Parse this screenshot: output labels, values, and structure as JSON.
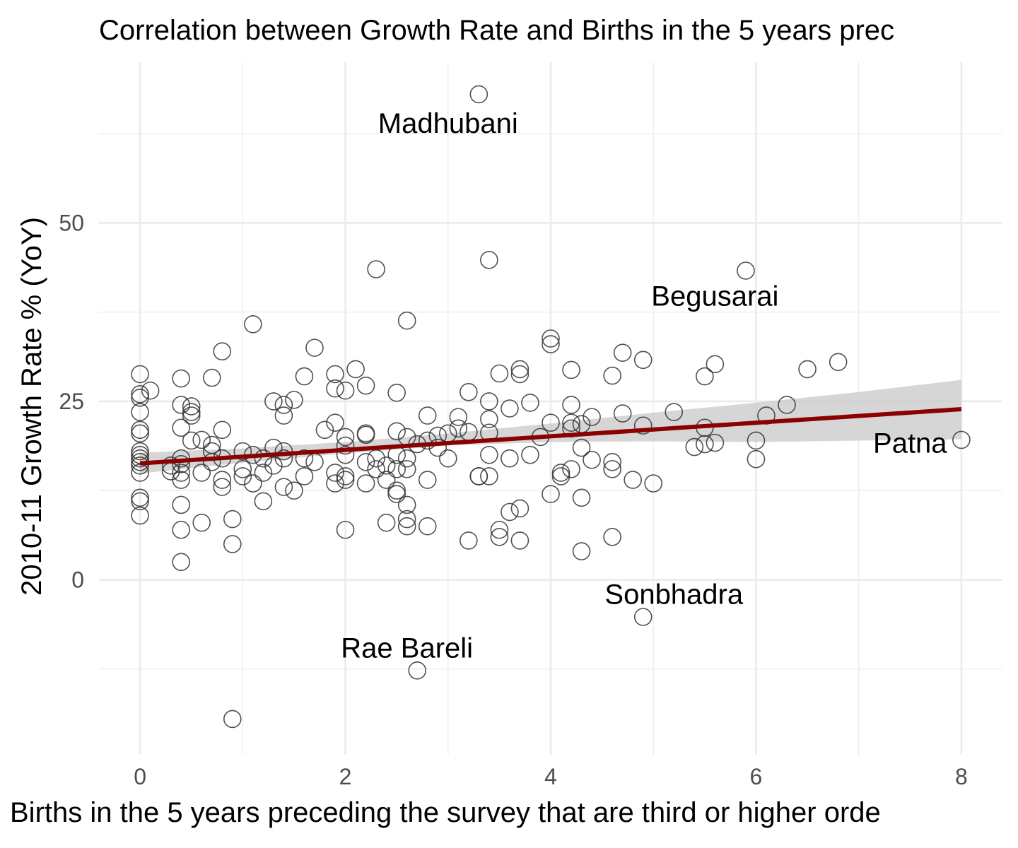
{
  "chart_data": {
    "type": "scatter",
    "title": "Correlation between Growth Rate and Births in the 5 years prec",
    "xlabel": "Births in the 5 years preceding the survey that are third or higher orde",
    "ylabel": "2010-11 Growth Rate % (YoY)",
    "xlim": [
      -0.4,
      8.4
    ],
    "ylim": [
      -24.5,
      72.5
    ],
    "x_ticks": [
      0,
      2,
      4,
      6,
      8
    ],
    "y_ticks": [
      0,
      25,
      50
    ],
    "x_tick_labels": [
      "0",
      "2",
      "4",
      "6",
      "8"
    ],
    "y_tick_labels": [
      "0",
      "25",
      "50"
    ],
    "grid": true,
    "colors": {
      "points": "#333333",
      "trend": "#8b0000",
      "band": "#c8c8c8",
      "grid": "#ebebeb"
    },
    "trend": {
      "x": [
        0,
        8
      ],
      "y": [
        16.3,
        23.9
      ]
    },
    "confidence_band": {
      "x": [
        0,
        1,
        2,
        3,
        4,
        5,
        6,
        7,
        8
      ],
      "lower": [
        14.9,
        16.4,
        17.7,
        18.8,
        19.3,
        19.4,
        19.3,
        19.5,
        19.7
      ],
      "upper": [
        17.8,
        18.4,
        19.3,
        20.5,
        21.9,
        23.4,
        24.8,
        26.3,
        28.0
      ]
    },
    "annotations": [
      {
        "label": "Madhubani",
        "x": 3.0,
        "y": 64
      },
      {
        "label": "Begusarai",
        "x": 5.6,
        "y": 39.8
      },
      {
        "label": "Patna",
        "x": 7.5,
        "y": 19.2
      },
      {
        "label": "Sonbhadra",
        "x": 5.2,
        "y": -2
      },
      {
        "label": "Rae Bareli",
        "x": 2.6,
        "y": -9.5
      }
    ],
    "points": [
      [
        3.3,
        68
      ],
      [
        2.3,
        43.5
      ],
      [
        3.4,
        44.8
      ],
      [
        5.9,
        43.3
      ],
      [
        1.1,
        35.8
      ],
      [
        2.6,
        36.3
      ],
      [
        4.0,
        33.8
      ],
      [
        4.0,
        33.0
      ],
      [
        0.8,
        32.0
      ],
      [
        1.7,
        32.5
      ],
      [
        4.7,
        31.8
      ],
      [
        4.9,
        30.8
      ],
      [
        5.6,
        30.2
      ],
      [
        6.8,
        30.5
      ],
      [
        6.5,
        29.5
      ],
      [
        0.0,
        28.8
      ],
      [
        0.4,
        28.2
      ],
      [
        0.7,
        28.3
      ],
      [
        1.6,
        28.5
      ],
      [
        1.9,
        28.8
      ],
      [
        2.1,
        29.5
      ],
      [
        3.5,
        28.9
      ],
      [
        3.7,
        28.8
      ],
      [
        3.7,
        29.5
      ],
      [
        4.2,
        29.4
      ],
      [
        4.6,
        28.6
      ],
      [
        5.5,
        28.5
      ],
      [
        0.0,
        26.0
      ],
      [
        0.1,
        26.5
      ],
      [
        0.0,
        25.5
      ],
      [
        1.9,
        26.8
      ],
      [
        2.0,
        26.5
      ],
      [
        2.2,
        27.2
      ],
      [
        2.5,
        26.2
      ],
      [
        3.2,
        26.3
      ],
      [
        0.4,
        24.5
      ],
      [
        0.5,
        24.3
      ],
      [
        0.5,
        23.5
      ],
      [
        0.5,
        23.0
      ],
      [
        1.3,
        25.0
      ],
      [
        1.4,
        24.5
      ],
      [
        1.4,
        23.0
      ],
      [
        1.5,
        25.2
      ],
      [
        2.8,
        23.0
      ],
      [
        3.4,
        25.0
      ],
      [
        3.6,
        24.0
      ],
      [
        3.8,
        24.8
      ],
      [
        4.2,
        24.5
      ],
      [
        4.7,
        23.3
      ],
      [
        5.2,
        23.5
      ],
      [
        6.1,
        23.0
      ],
      [
        6.3,
        24.5
      ],
      [
        0.0,
        23.5
      ],
      [
        0.0,
        21.0
      ],
      [
        0.0,
        20.5
      ],
      [
        0.4,
        21.3
      ],
      [
        0.5,
        19.5
      ],
      [
        0.6,
        19.6
      ],
      [
        0.7,
        18.9
      ],
      [
        0.7,
        18.0
      ],
      [
        0.8,
        21.0
      ],
      [
        1.8,
        21.0
      ],
      [
        1.9,
        22.0
      ],
      [
        2.0,
        20.0
      ],
      [
        2.0,
        18.8
      ],
      [
        2.2,
        20.5
      ],
      [
        2.2,
        20.3
      ],
      [
        2.5,
        20.8
      ],
      [
        2.6,
        20.0
      ],
      [
        2.9,
        20.2
      ],
      [
        3.0,
        20.5
      ],
      [
        3.1,
        22.8
      ],
      [
        3.1,
        21.2
      ],
      [
        3.2,
        20.7
      ],
      [
        3.4,
        22.5
      ],
      [
        3.4,
        20.6
      ],
      [
        4.0,
        22.0
      ],
      [
        4.2,
        22.0
      ],
      [
        4.2,
        21.2
      ],
      [
        4.3,
        21.8
      ],
      [
        4.4,
        22.8
      ],
      [
        4.9,
        21.6
      ],
      [
        5.5,
        21.3
      ],
      [
        5.4,
        18.6
      ],
      [
        5.5,
        19.0
      ],
      [
        5.6,
        19.2
      ],
      [
        6.0,
        19.5
      ],
      [
        6.0,
        16.9
      ],
      [
        8.0,
        19.6
      ],
      [
        0.0,
        18.0
      ],
      [
        0.0,
        17.5
      ],
      [
        0.0,
        17.0
      ],
      [
        0.0,
        16.5
      ],
      [
        0.0,
        16.0
      ],
      [
        0.0,
        15.0
      ],
      [
        0.3,
        16.0
      ],
      [
        0.3,
        15.2
      ],
      [
        0.4,
        17.0
      ],
      [
        0.4,
        16.2
      ],
      [
        0.4,
        15.0
      ],
      [
        0.4,
        14.0
      ],
      [
        0.6,
        15.0
      ],
      [
        0.7,
        16.5
      ],
      [
        0.8,
        17.0
      ],
      [
        0.8,
        14.0
      ],
      [
        0.8,
        13.0
      ],
      [
        1.0,
        18.0
      ],
      [
        1.0,
        15.5
      ],
      [
        1.0,
        14.5
      ],
      [
        1.1,
        17.5
      ],
      [
        1.1,
        13.5
      ],
      [
        1.2,
        17.0
      ],
      [
        1.2,
        15.0
      ],
      [
        1.3,
        18.5
      ],
      [
        1.3,
        16.0
      ],
      [
        1.4,
        18.0
      ],
      [
        1.4,
        17.0
      ],
      [
        1.4,
        13.0
      ],
      [
        1.5,
        12.5
      ],
      [
        1.6,
        17.0
      ],
      [
        1.6,
        14.5
      ],
      [
        1.7,
        16.5
      ],
      [
        1.9,
        15.0
      ],
      [
        1.9,
        13.5
      ],
      [
        2.0,
        17.5
      ],
      [
        2.0,
        14.5
      ],
      [
        2.0,
        14.0
      ],
      [
        2.2,
        16.5
      ],
      [
        2.2,
        13.5
      ],
      [
        2.3,
        17.0
      ],
      [
        2.3,
        15.5
      ],
      [
        2.4,
        16.0
      ],
      [
        2.4,
        14.0
      ],
      [
        2.5,
        17.5
      ],
      [
        2.5,
        15.5
      ],
      [
        2.5,
        12.5
      ],
      [
        2.6,
        17.0
      ],
      [
        2.6,
        15.5
      ],
      [
        2.7,
        19.0
      ],
      [
        2.8,
        19.5
      ],
      [
        2.8,
        14.0
      ],
      [
        2.9,
        18.5
      ],
      [
        3.0,
        17.0
      ],
      [
        3.3,
        14.5
      ],
      [
        3.3,
        14.5
      ],
      [
        3.4,
        14.5
      ],
      [
        3.4,
        17.5
      ],
      [
        3.6,
        17.0
      ],
      [
        3.8,
        17.5
      ],
      [
        3.9,
        20.0
      ],
      [
        4.1,
        15.0
      ],
      [
        4.1,
        14.5
      ],
      [
        4.2,
        15.5
      ],
      [
        4.3,
        18.5
      ],
      [
        4.4,
        16.8
      ],
      [
        4.6,
        16.5
      ],
      [
        4.6,
        15.5
      ],
      [
        4.8,
        14.0
      ],
      [
        5.0,
        13.5
      ],
      [
        0.0,
        11.5
      ],
      [
        0.0,
        11.0
      ],
      [
        0.0,
        9.0
      ],
      [
        0.4,
        10.5
      ],
      [
        0.4,
        7.0
      ],
      [
        0.6,
        8.0
      ],
      [
        0.9,
        8.5
      ],
      [
        0.9,
        5.0
      ],
      [
        1.2,
        11.0
      ],
      [
        2.0,
        7.0
      ],
      [
        2.4,
        8.0
      ],
      [
        2.5,
        12.0
      ],
      [
        2.6,
        10.5
      ],
      [
        2.6,
        8.5
      ],
      [
        2.6,
        7.5
      ],
      [
        2.8,
        7.5
      ],
      [
        3.2,
        5.5
      ],
      [
        3.5,
        7.0
      ],
      [
        3.5,
        6.0
      ],
      [
        3.6,
        9.5
      ],
      [
        3.7,
        10.0
      ],
      [
        3.7,
        5.5
      ],
      [
        4.0,
        12.0
      ],
      [
        4.3,
        11.5
      ],
      [
        4.3,
        4.0
      ],
      [
        4.6,
        6.0
      ],
      [
        0.4,
        2.5
      ],
      [
        4.9,
        -5.2
      ],
      [
        2.7,
        -12.7
      ],
      [
        0.9,
        -19.5
      ]
    ]
  }
}
